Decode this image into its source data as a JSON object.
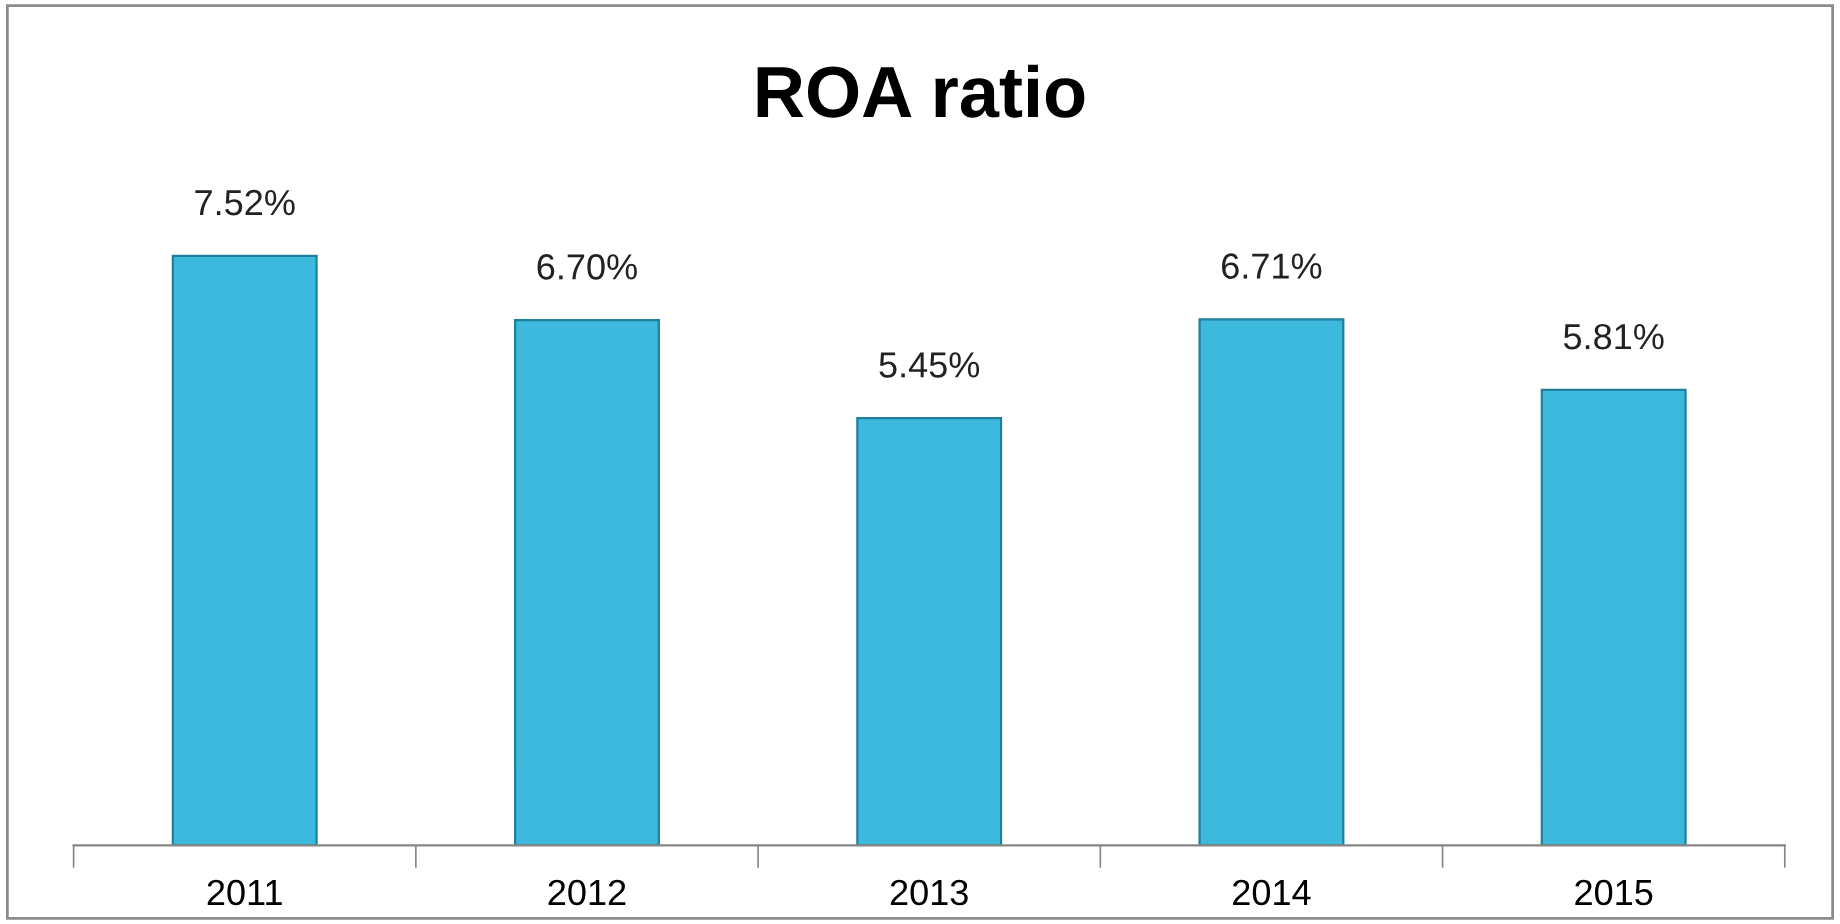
{
  "chart_data": {
    "type": "bar",
    "title": "ROA ratio",
    "categories": [
      "2011",
      "2012",
      "2013",
      "2014",
      "2015"
    ],
    "values": [
      7.52,
      6.7,
      5.45,
      6.71,
      5.81
    ],
    "value_labels": [
      "7.52%",
      "6.70%",
      "5.45%",
      "6.71%",
      "5.81%"
    ],
    "color": "#3cb9dc",
    "grid": false,
    "legend": false
  }
}
